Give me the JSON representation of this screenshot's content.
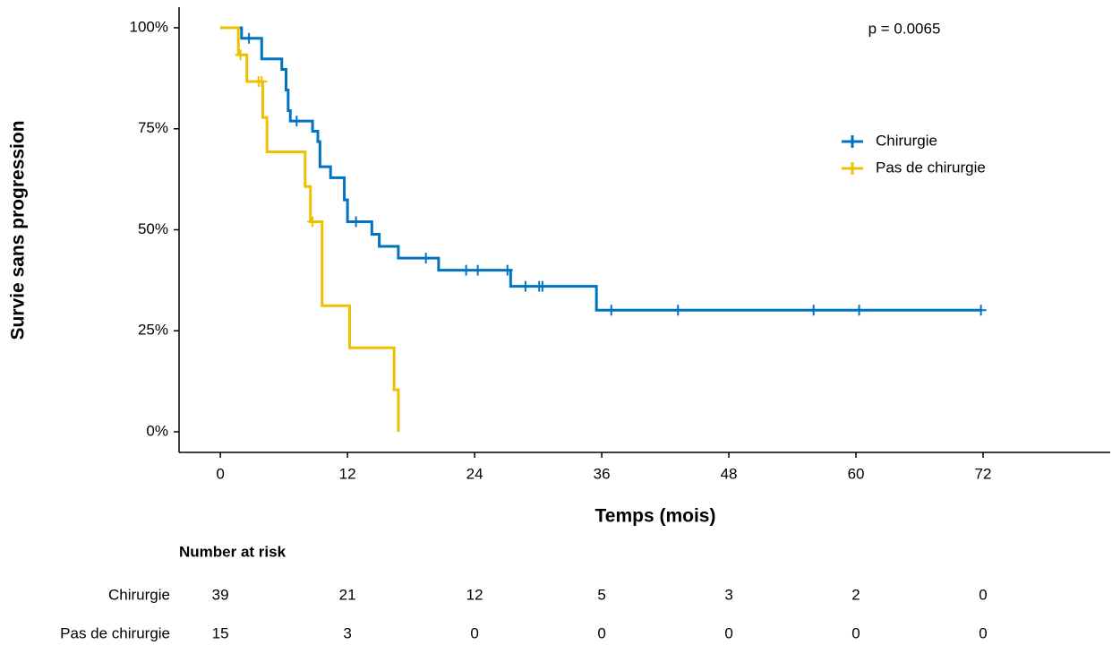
{
  "chart_data": {
    "type": "step",
    "annotation": "p = 0.0065",
    "x_label": "Temps (mois)",
    "y_label": "Survie sans progression",
    "xlim": [
      -3.9,
      84
    ],
    "ylim": [
      -5.1,
      105.1
    ],
    "xticks": [
      0,
      12,
      24,
      36,
      48,
      60,
      72
    ],
    "yticks": [
      {
        "value": 0,
        "label": "0%"
      },
      {
        "value": 25,
        "label": "25%"
      },
      {
        "value": 50,
        "label": "50%"
      },
      {
        "value": 75,
        "label": "75%"
      },
      {
        "value": 100,
        "label": "100%"
      }
    ],
    "legend": "right",
    "series": [
      {
        "name": "Chirurgie",
        "color": "#0073c2",
        "x": [
          0,
          2.0,
          3.9,
          5.8,
          6.2,
          6.4,
          6.6,
          8.7,
          9.2,
          9.4,
          10.4,
          11.7,
          12.0,
          14.3,
          15.0,
          16.8,
          20.6,
          27.4,
          35.5,
          71.8
        ],
        "values": [
          100,
          97.4,
          92.3,
          89.7,
          84.6,
          79.5,
          76.9,
          74.4,
          71.8,
          65.6,
          62.9,
          57.4,
          52.0,
          48.9,
          45.9,
          43.0,
          40.0,
          36.0,
          30.1,
          30.1
        ],
        "censor_x": [
          2.7,
          7.2,
          12.8,
          19.4,
          23.2,
          24.3,
          27.1,
          28.8,
          30.1,
          30.4,
          36.9,
          43.2,
          56.0,
          60.3,
          71.8
        ],
        "censor_values": [
          97.4,
          76.9,
          52.0,
          43.0,
          40.0,
          40.0,
          40.0,
          36.0,
          36.0,
          36.0,
          30.1,
          30.1,
          30.1,
          30.1,
          30.1
        ]
      },
      {
        "name": "Pas de chirurgie",
        "color": "#efc000",
        "x": [
          0,
          1.7,
          2.5,
          4.0,
          4.4,
          8.0,
          8.5,
          9.6,
          12.2,
          16.4,
          16.8
        ],
        "values": [
          100,
          93.3,
          86.7,
          77.8,
          69.3,
          60.7,
          52.0,
          31.2,
          20.8,
          10.4,
          0
        ],
        "censor_x": [
          1.9,
          3.6,
          3.9,
          8.7
        ],
        "censor_values": [
          93.3,
          86.7,
          86.7,
          52.0
        ]
      }
    ]
  },
  "risk_table": {
    "title": "Number at risk",
    "rows": [
      {
        "name": "Chirurgie",
        "counts": [
          "39",
          "21",
          "12",
          "5",
          "3",
          "2",
          "0"
        ]
      },
      {
        "name": "Pas de chirurgie",
        "counts": [
          "15",
          "3",
          "0",
          "0",
          "0",
          "0",
          "0"
        ]
      }
    ]
  }
}
